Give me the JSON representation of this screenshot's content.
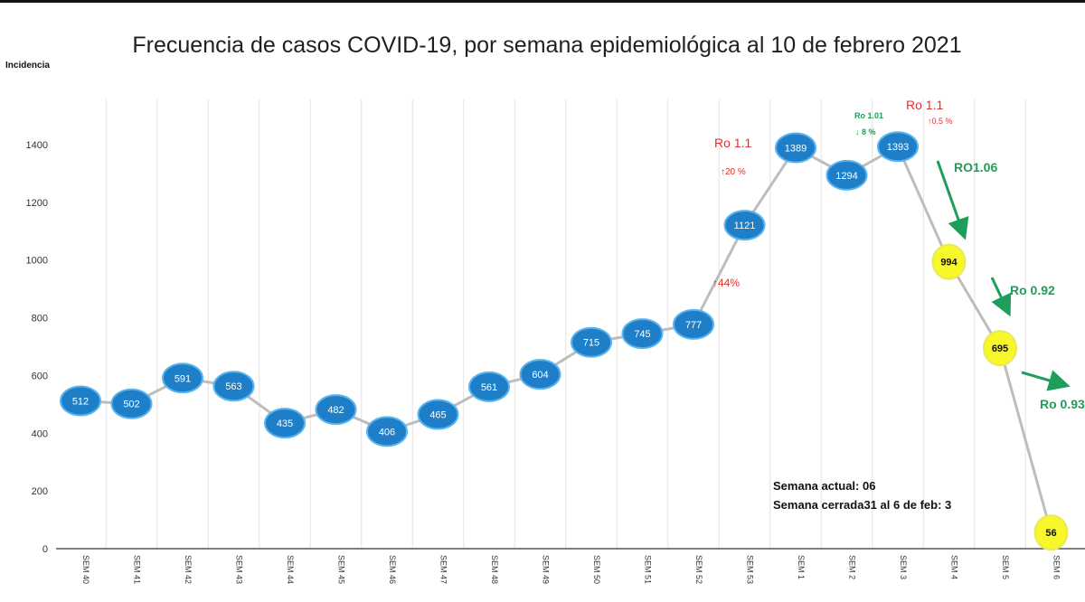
{
  "chart_data": {
    "type": "line",
    "title": "Frecuencia de casos COVID-19, por semana epidemiológica al 10 de febrero 2021",
    "ylabel": "Incidencia",
    "xlabel": "",
    "ylim": [
      0,
      1400
    ],
    "yticks": [
      0,
      200,
      400,
      600,
      800,
      1000,
      1200,
      1400
    ],
    "grid": "vertical",
    "categories": [
      "SEM 40",
      "SEM 41",
      "SEM 42",
      "SEM 43",
      "SEM 44",
      "SEM 45",
      "SEM 46",
      "SEM 47",
      "SEM 48",
      "SEM 49",
      "SEM 50",
      "SEM 51",
      "SEM 52",
      "SEM 53",
      "SEM 1",
      "SEM 2",
      "SEM 3",
      "SEM 4",
      "SEM 5",
      "SEM 6"
    ],
    "series": [
      {
        "values": [
          512,
          502,
          591,
          563,
          435,
          482,
          406,
          465,
          561,
          604,
          715,
          745,
          777,
          1121,
          1389,
          1294,
          1393,
          994,
          695,
          56
        ],
        "labels": [
          "512",
          "502",
          "591",
          "563",
          "435",
          "482",
          "406",
          "465",
          "561",
          "604",
          "715",
          "745",
          "777",
          "1121",
          "1389",
          "1294",
          "1393",
          "994",
          "695",
          "56"
        ]
      }
    ],
    "colors": {
      "marker": "#1e7fc8",
      "marker_highlight": "#f7f72a",
      "line": "#bdbdbd",
      "red": "#e03030",
      "green": "#1e9e5a"
    },
    "annotations": [
      {
        "text": "Ro 1.1",
        "color": "red"
      },
      {
        "text": "↑20 %",
        "color": "red"
      },
      {
        "text": "↑44%",
        "color": "red"
      },
      {
        "text": "Ro 1.01",
        "color": "green"
      },
      {
        "text": "↓ 8 %",
        "color": "green"
      },
      {
        "text": "Ro 1.1",
        "color": "red"
      },
      {
        "text": "↑0.5 %",
        "color": "red"
      },
      {
        "text": "RO1.06",
        "color": "green"
      },
      {
        "text": "Ro 0.92",
        "color": "green"
      },
      {
        "text": "Ro 0.93",
        "color": "green"
      }
    ]
  },
  "info": {
    "line1": "Semana actual: 06",
    "line2": "Semana cerrada31 al 6 de feb: 3"
  }
}
